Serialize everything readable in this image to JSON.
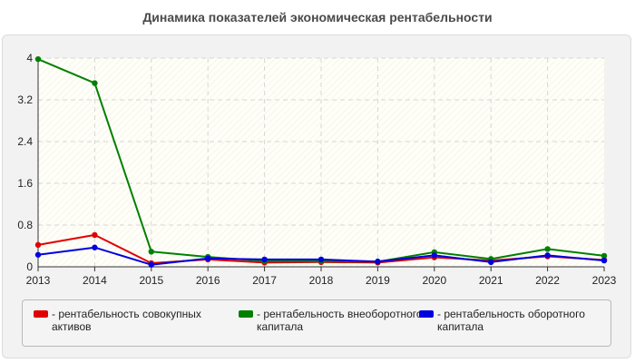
{
  "chart_data": {
    "type": "line",
    "title": "Динамика показателей экономическая рентабельности",
    "x": [
      "2013",
      "2014",
      "2015",
      "2016",
      "2017",
      "2018",
      "2019",
      "2020",
      "2021",
      "2022",
      "2023"
    ],
    "y_ticks": [
      "0",
      "0.8",
      "1.6",
      "2.4",
      "3.2",
      "4"
    ],
    "ylim": [
      0,
      4
    ],
    "grid": true,
    "legend_position": "bottom",
    "series": [
      {
        "name": "- рентабельность совокупных активов",
        "color": "#e00000",
        "values": [
          0.42,
          0.61,
          0.07,
          0.14,
          0.08,
          0.09,
          0.08,
          0.18,
          0.12,
          0.2,
          0.13
        ]
      },
      {
        "name": "- рентабельность внеоборотного капитала",
        "color": "#008000",
        "values": [
          3.98,
          3.52,
          0.29,
          0.19,
          0.11,
          0.11,
          0.1,
          0.28,
          0.15,
          0.34,
          0.21
        ]
      },
      {
        "name": "- рентабельность оборотного капитала",
        "color": "#0000e0",
        "values": [
          0.23,
          0.37,
          0.04,
          0.16,
          0.14,
          0.14,
          0.1,
          0.22,
          0.09,
          0.22,
          0.12
        ]
      }
    ]
  }
}
